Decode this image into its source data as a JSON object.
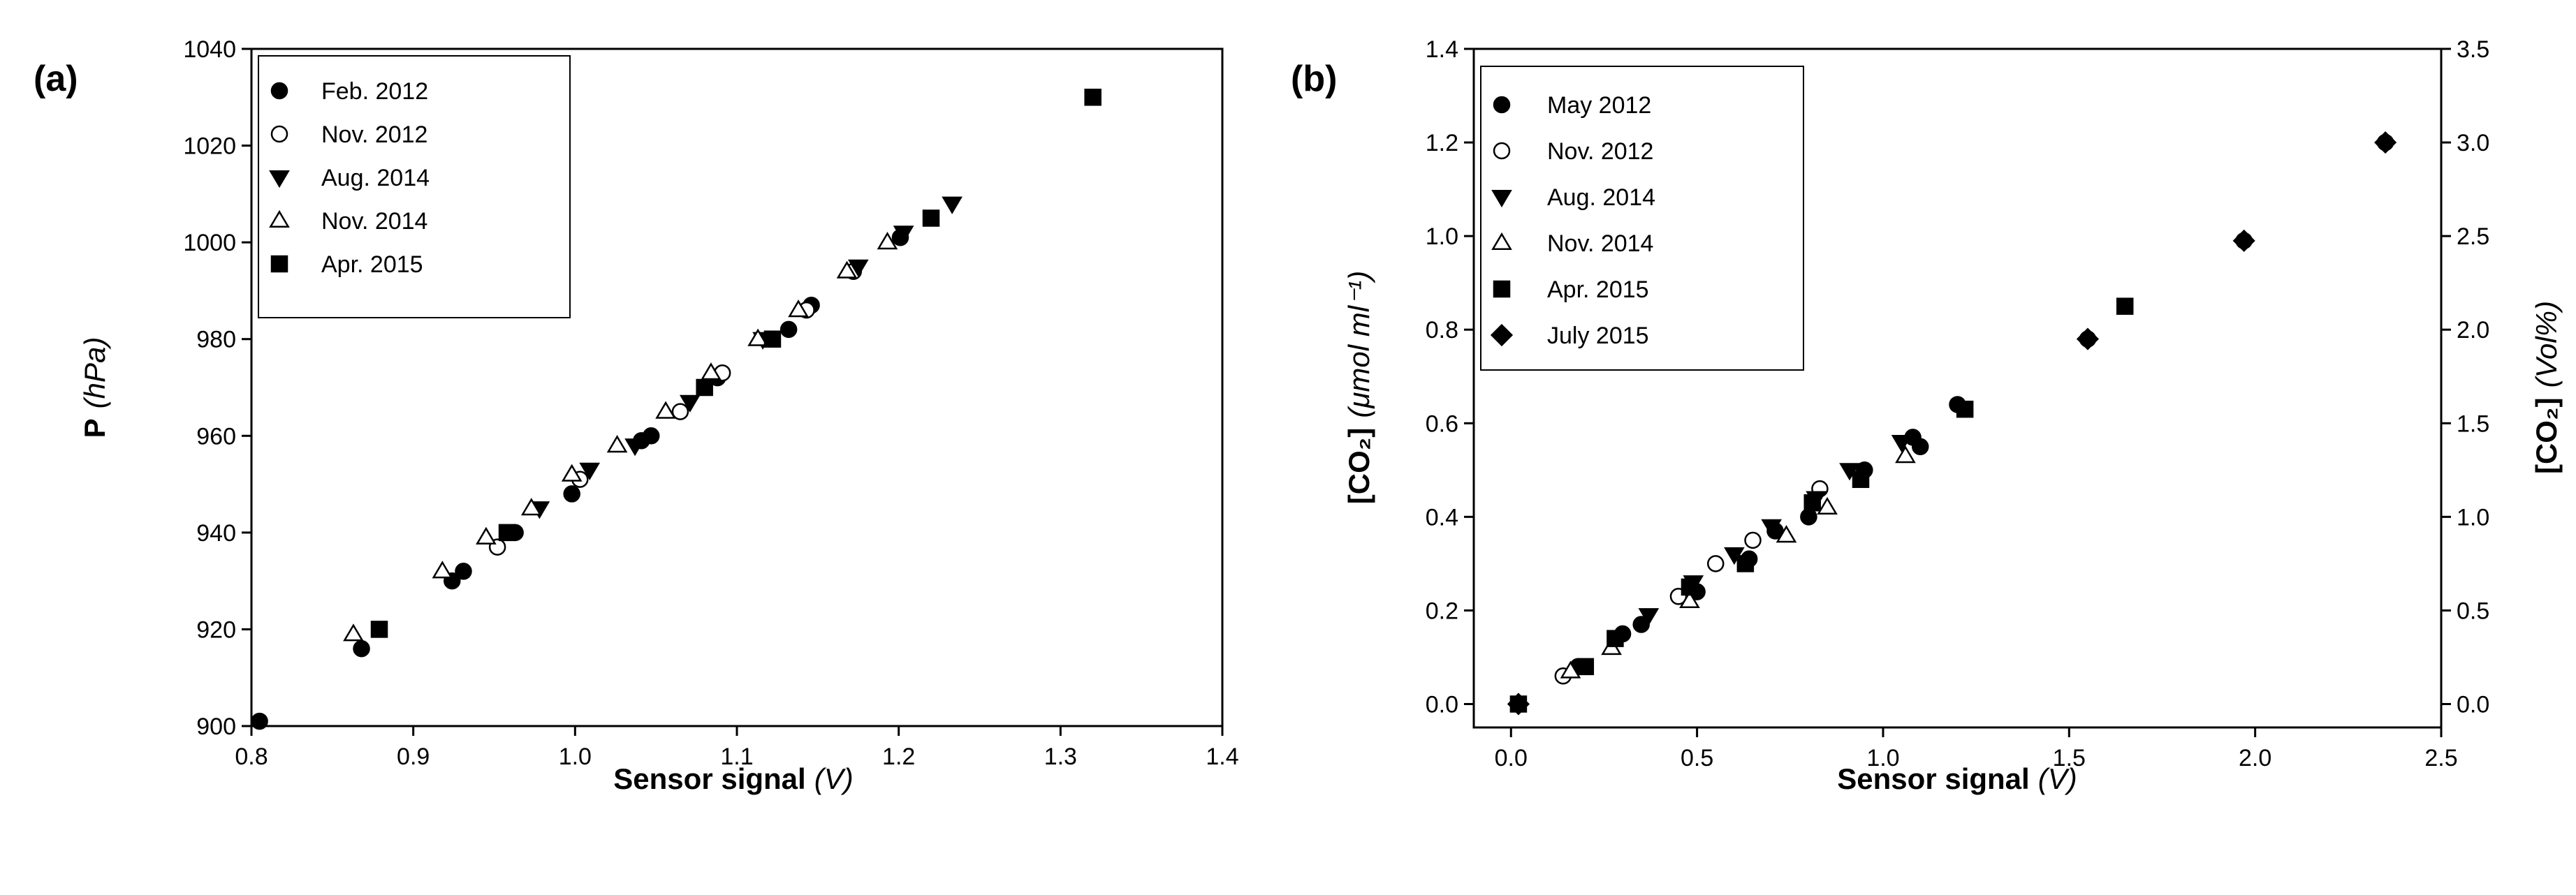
{
  "chart_data": [
    {
      "panel": "(a)",
      "type": "scatter",
      "xlabel": "Sensor signal",
      "xunit": "(V)",
      "ylabel": "P",
      "yunit": "(hPa)",
      "xlim": [
        0.8,
        1.4
      ],
      "ylim": [
        900,
        1040
      ],
      "xticks": [
        "0.8",
        "0.9",
        "1.0",
        "1.1",
        "1.2",
        "1.3",
        "1.4"
      ],
      "yticks": [
        "900",
        "920",
        "940",
        "960",
        "980",
        "1000",
        "1020",
        "1040"
      ],
      "legend_position": "top-left",
      "series": [
        {
          "name": "Feb. 2012",
          "marker": "circle-filled",
          "x": [
            0.805,
            0.868,
            0.924,
            0.931,
            0.963,
            0.998,
            1.041,
            1.047,
            1.088,
            1.132,
            1.146,
            1.201
          ],
          "y": [
            901,
            916,
            930,
            932,
            940,
            948,
            959,
            960,
            972,
            982,
            987,
            1001
          ]
        },
        {
          "name": "Nov. 2012",
          "marker": "circle-open",
          "x": [
            0.952,
            1.003,
            1.065,
            1.091,
            1.143,
            1.172
          ],
          "y": [
            937,
            951,
            965,
            973,
            986,
            994
          ]
        },
        {
          "name": "Aug. 2014",
          "marker": "triangle-down-filled",
          "x": [
            0.978,
            1.009,
            1.037,
            1.071,
            1.116,
            1.175,
            1.203,
            1.233
          ],
          "y": [
            945,
            953,
            958,
            967,
            980,
            995,
            1002,
            1008
          ]
        },
        {
          "name": "Nov. 2014",
          "marker": "triangle-up-open",
          "x": [
            0.863,
            0.918,
            0.945,
            0.973,
            0.998,
            1.026,
            1.056,
            1.084,
            1.113,
            1.138,
            1.168,
            1.193
          ],
          "y": [
            919,
            932,
            939,
            945,
            952,
            958,
            965,
            973,
            980,
            986,
            994,
            1000
          ]
        },
        {
          "name": "Apr. 2015",
          "marker": "square-filled",
          "x": [
            0.879,
            0.958,
            1.08,
            1.122,
            1.22,
            1.32
          ],
          "y": [
            920,
            940,
            970,
            980,
            1005,
            1030
          ]
        }
      ]
    },
    {
      "panel": "(b)",
      "type": "scatter",
      "xlabel": "Sensor signal",
      "xunit": "(V)",
      "ylabel": "[CO₂]",
      "yunit": "(μmol ml⁻¹)",
      "y2label": "[CO₂]",
      "y2unit": "(Vol%)",
      "xlim": [
        -0.1,
        2.5
      ],
      "ylim": [
        -0.05,
        1.4
      ],
      "y2lim": [
        -0.125,
        3.5
      ],
      "xticks": [
        "0.0",
        "0.5",
        "1.0",
        "1.5",
        "2.0",
        "2.5"
      ],
      "yticks": [
        "0.0",
        "0.2",
        "0.4",
        "0.6",
        "0.8",
        "1.0",
        "1.2",
        "1.4"
      ],
      "y2ticks": [
        "0.0",
        "0.5",
        "1.0",
        "1.5",
        "2.0",
        "2.5",
        "3.0",
        "3.5"
      ],
      "legend_position": "top-left",
      "series": [
        {
          "name": "May 2012",
          "marker": "circle-filled",
          "x": [
            0.02,
            0.18,
            0.3,
            0.35,
            0.5,
            0.64,
            0.71,
            0.8,
            0.95,
            1.08,
            1.1,
            1.2,
            1.55,
            1.97,
            2.35
          ],
          "y": [
            0.0,
            0.08,
            0.15,
            0.17,
            0.24,
            0.31,
            0.37,
            0.4,
            0.5,
            0.57,
            0.55,
            0.64,
            0.78,
            0.99,
            1.2
          ]
        },
        {
          "name": "Nov. 2012",
          "marker": "circle-open",
          "x": [
            0.14,
            0.45,
            0.55,
            0.65,
            0.83
          ],
          "y": [
            0.06,
            0.23,
            0.3,
            0.35,
            0.46
          ]
        },
        {
          "name": "Aug. 2014",
          "marker": "triangle-down-filled",
          "x": [
            0.37,
            0.49,
            0.6,
            0.7,
            0.82,
            0.91,
            1.05
          ],
          "y": [
            0.19,
            0.26,
            0.32,
            0.38,
            0.44,
            0.5,
            0.56
          ]
        },
        {
          "name": "Nov. 2014",
          "marker": "triangle-up-open",
          "x": [
            0.16,
            0.27,
            0.48,
            0.74,
            0.85,
            1.06
          ],
          "y": [
            0.07,
            0.12,
            0.22,
            0.36,
            0.42,
            0.53
          ]
        },
        {
          "name": "Apr. 2015",
          "marker": "square-filled",
          "x": [
            0.02,
            0.2,
            0.28,
            0.48,
            0.63,
            0.81,
            0.94,
            1.22,
            1.65
          ],
          "y": [
            0.0,
            0.08,
            0.14,
            0.25,
            0.3,
            0.43,
            0.48,
            0.63,
            0.85
          ]
        },
        {
          "name": "July 2015",
          "marker": "diamond-filled",
          "x": [
            0.02,
            1.55,
            1.97,
            2.35
          ],
          "y": [
            0.0,
            0.78,
            0.99,
            1.2
          ]
        }
      ]
    }
  ]
}
